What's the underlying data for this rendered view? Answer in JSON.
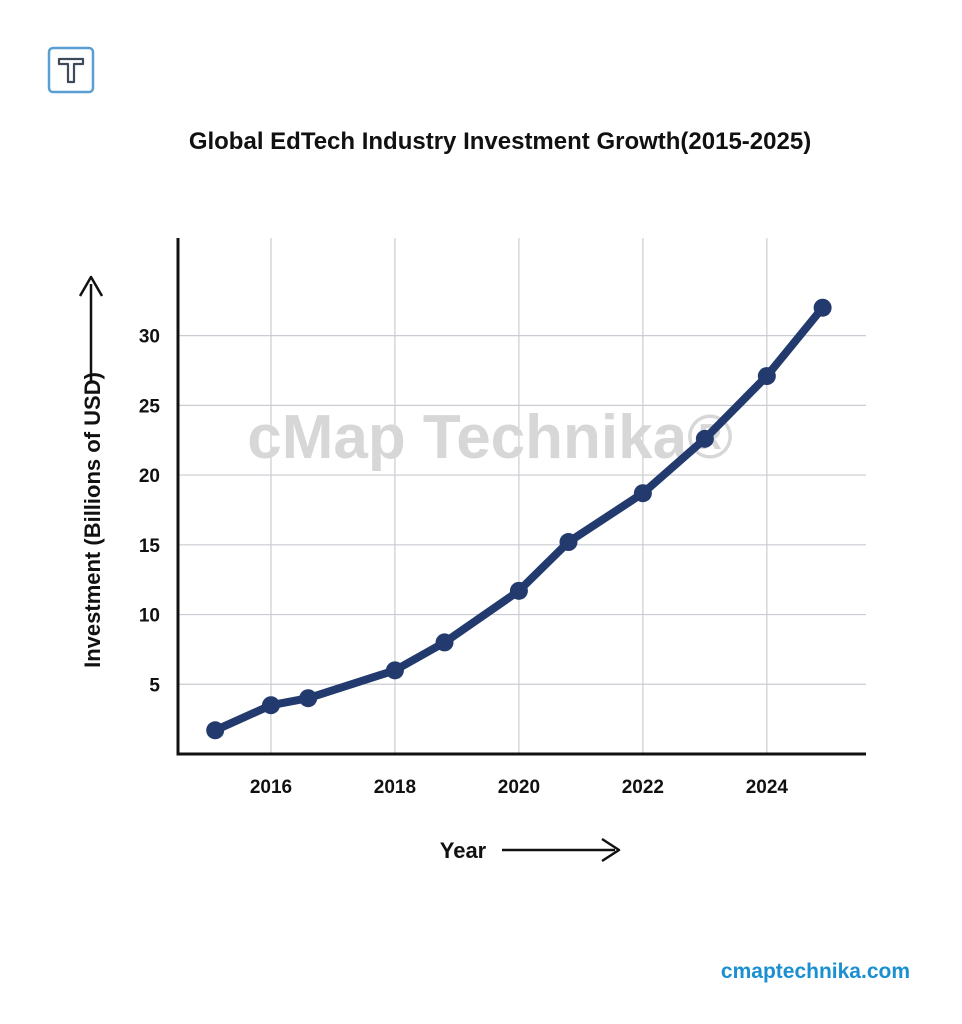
{
  "brand": {
    "logo_letter": "T",
    "logo_color": "#5a9fd4",
    "watermark": "cMap Technika®",
    "site": "cmaptechnika.com",
    "site_color": "#1a8fd1"
  },
  "colors": {
    "line": "#223a6e",
    "axis": "#111111",
    "grid": "#c9ccd2",
    "watermark": "#d7d7d7"
  },
  "chart_data": {
    "type": "line",
    "title": "Global EdTech Industry Investment Growth(2015-2025)",
    "xlabel": "Year",
    "ylabel": "Investment (Billions of USD)",
    "xlim": [
      2014.5,
      2025.6
    ],
    "ylim": [
      0,
      37
    ],
    "x_ticks": [
      2016,
      2018,
      2020,
      2022,
      2024
    ],
    "y_ticks": [
      5,
      10,
      15,
      20,
      25,
      30
    ],
    "grid": true,
    "legend": "none",
    "series": [
      {
        "x": [
          2015.1,
          2016.0,
          2016.6,
          2018.0,
          2018.8,
          2020.0,
          2020.8,
          2022.0,
          2023.0,
          2024.0,
          2024.9
        ],
        "y": [
          1.7,
          3.5,
          4.0,
          6.0,
          8.0,
          11.7,
          15.2,
          18.7,
          22.6,
          27.1,
          32.0
        ]
      }
    ]
  }
}
